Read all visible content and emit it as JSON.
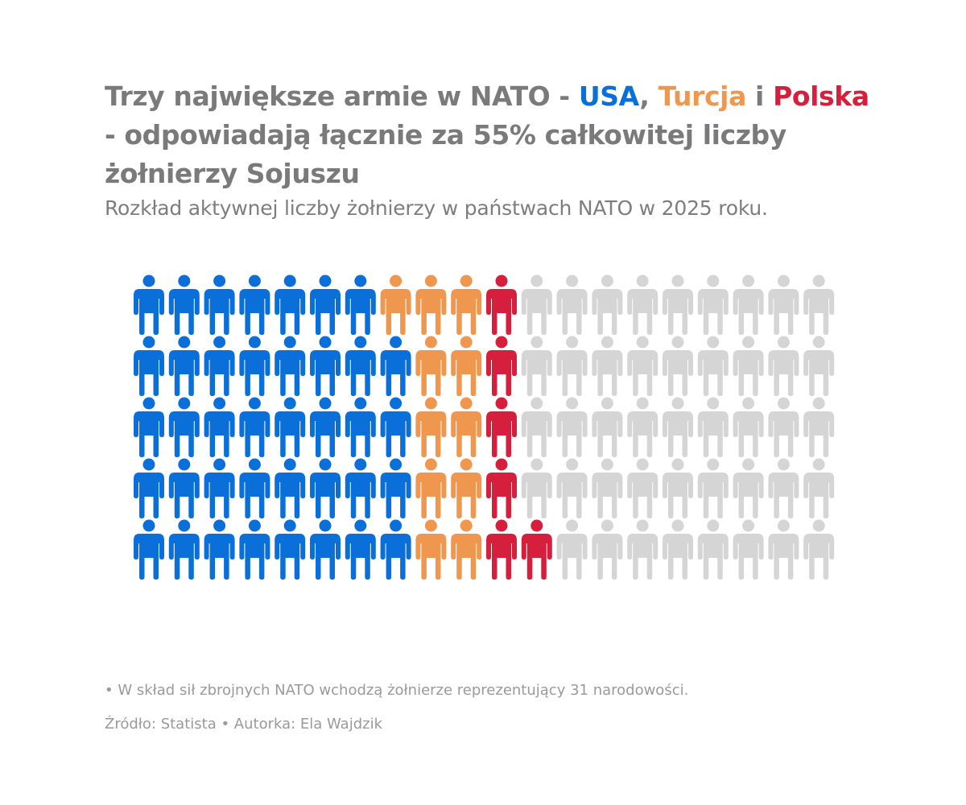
{
  "title": {
    "part1": "Trzy największe armie w NATO - ",
    "usa": "USA",
    "sep1": ", ",
    "turkey": "Turcja",
    "sep2": " i ",
    "poland": "Polska",
    "part2": " - odpowiadają łącznie za 55% całkowitej liczby żołnierzy Sojuszu"
  },
  "subtitle": "Rozkład aktywnej liczby żołnierzy w państwach NATO w 2025 roku.",
  "footnote": "• W skład sił zbrojnych NATO wchodzą żołnierze reprezentujący 31 narodowości.",
  "source": "Źródło: Statista • Autorka: Ela Wajdzik",
  "colors": {
    "usa": "#0a6fd8",
    "turkey": "#f0974f",
    "poland": "#d61f3c",
    "other": "#d5d5d5"
  },
  "chart_data": {
    "type": "waffle",
    "total_icons": 100,
    "rows": 5,
    "columns": 20,
    "icon": "person-icon",
    "segments": [
      {
        "key": "usa",
        "label": "USA",
        "value": 39
      },
      {
        "key": "turkey",
        "label": "Turcja",
        "value": 11
      },
      {
        "key": "poland",
        "label": "Polska",
        "value": 6
      },
      {
        "key": "other",
        "label": "",
        "value": 44
      }
    ]
  }
}
